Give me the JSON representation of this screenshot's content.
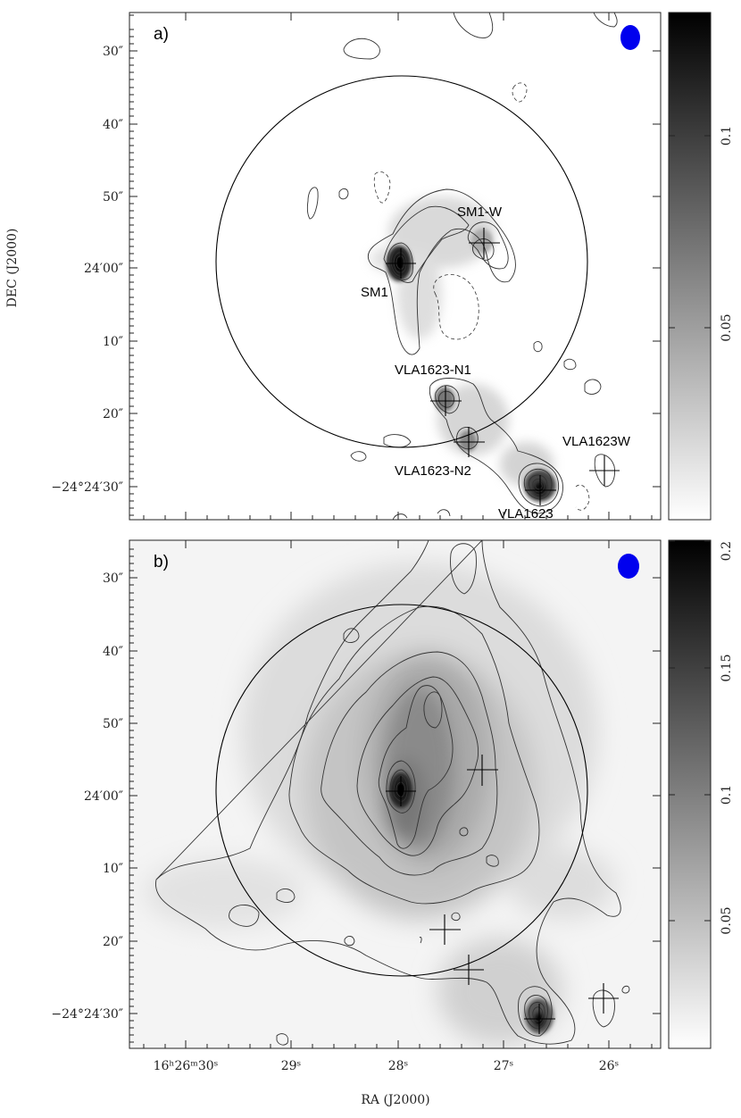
{
  "figure": {
    "x_axis_title": "RA (J2000)",
    "y_axis_title": "DEC (J2000)",
    "beam_color": "#0000ee"
  },
  "panels": [
    {
      "id": "a",
      "label": "a)",
      "dec_ticks": [
        "30″",
        "40″",
        "50″",
        "24′00″",
        "10″",
        "20″",
        "−24°24′30″"
      ],
      "colorbar_ticks": [
        "0.1",
        "0.05"
      ],
      "sources": [
        {
          "name": "SM1",
          "label": "SM1"
        },
        {
          "name": "SM1-W",
          "label": "SM1-W"
        },
        {
          "name": "VLA1623-N1",
          "label": "VLA1623-N1"
        },
        {
          "name": "VLA1623-N2",
          "label": "VLA1623-N2"
        },
        {
          "name": "VLA1623",
          "label": "VLA1623"
        },
        {
          "name": "VLA1623W",
          "label": "VLA1623W"
        }
      ]
    },
    {
      "id": "b",
      "label": "b)",
      "dec_ticks": [
        "30″",
        "40″",
        "50″",
        "24′00″",
        "10″",
        "20″",
        "−24°24′30″"
      ],
      "colorbar_ticks": [
        "0.2",
        "0.15",
        "0.1",
        "0.05"
      ]
    }
  ],
  "ra_ticks": [
    "16ʰ26ᵐ30ˢ",
    "29ˢ",
    "28ˢ",
    "27ˢ",
    "26ˢ"
  ]
}
